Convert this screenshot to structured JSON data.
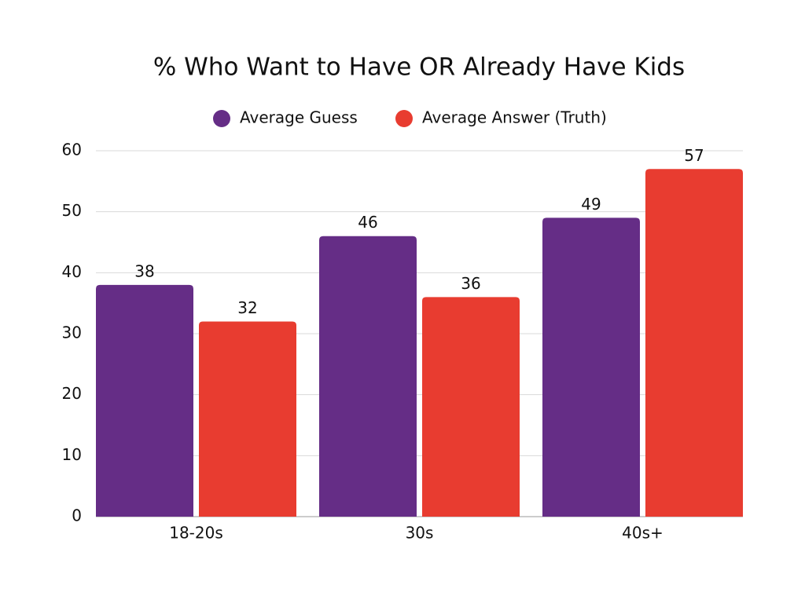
{
  "chart_data": {
    "type": "bar",
    "title": "% Who Want to Have OR Already Have Kids",
    "categories": [
      "18-20s",
      "30s",
      "40s+"
    ],
    "series": [
      {
        "name": "Average Guess",
        "color": "#652d86",
        "values": [
          38,
          46,
          49
        ]
      },
      {
        "name": "Average Answer (Truth)",
        "color": "#e83c30",
        "values": [
          32,
          36,
          57
        ]
      }
    ],
    "ylim": [
      0,
      60
    ],
    "yticks": [
      0,
      10,
      20,
      30,
      40,
      50,
      60
    ],
    "grid": true,
    "legend": "top"
  }
}
